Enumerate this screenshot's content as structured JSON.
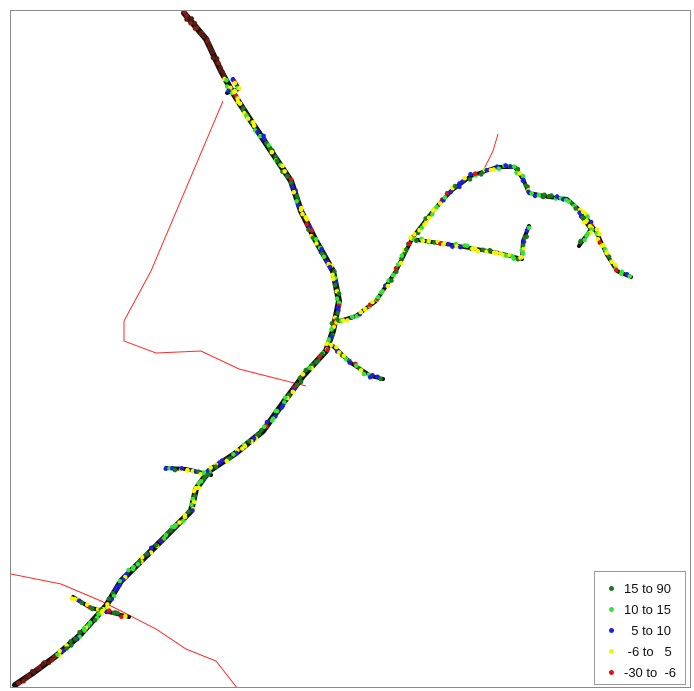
{
  "legend": {
    "items": [
      {
        "label": "15 to 90",
        "color": "#1a7a1a"
      },
      {
        "label": "10 to 15",
        "color": "#33e633"
      },
      {
        "label": "  5 to 10",
        "color": "#1f1fe0"
      },
      {
        "label": " -6 to   5",
        "color": "#f5f500"
      },
      {
        "label": "-30 to  -6",
        "color": "#e01010"
      }
    ]
  },
  "colors": {
    "boundary": "#ff2a2a",
    "track_base": "#111111"
  }
}
